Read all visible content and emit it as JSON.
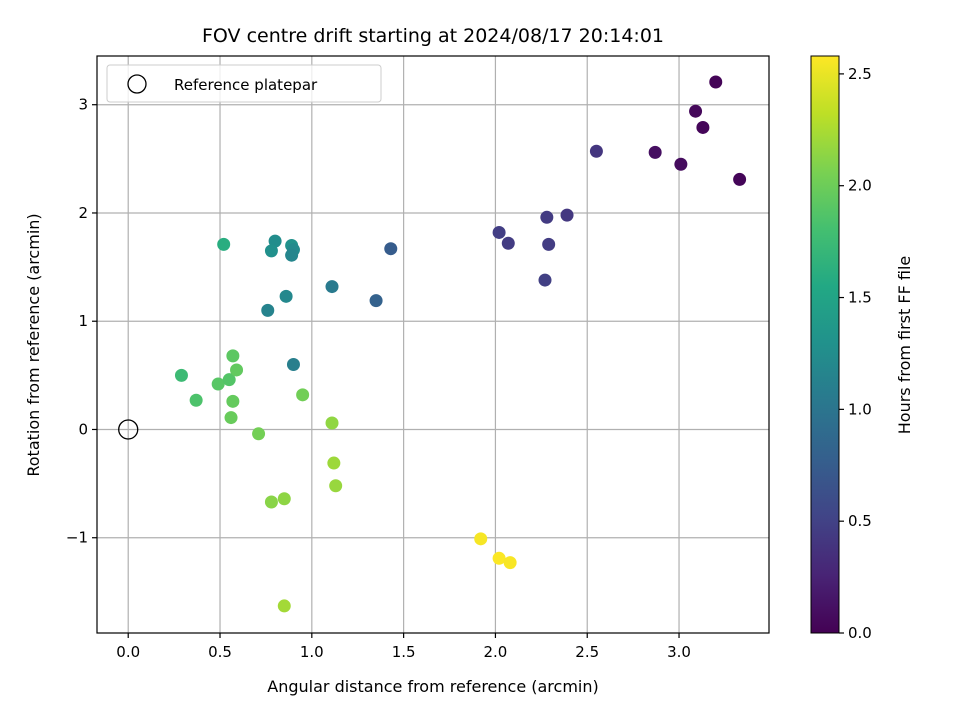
{
  "chart_data": {
    "type": "scatter",
    "title": "FOV centre drift starting at 2024/08/17 20:14:01",
    "xlabel": "Angular distance from reference (arcmin)",
    "ylabel": "Rotation from reference (arcmin)",
    "xlim": [
      -0.17,
      3.49
    ],
    "ylim": [
      -1.88,
      3.45
    ],
    "xticks": [
      0.0,
      0.5,
      1.0,
      1.5,
      2.0,
      2.5,
      3.0
    ],
    "xtick_labels": [
      "0.0",
      "0.5",
      "1.0",
      "1.5",
      "2.0",
      "2.5",
      "3.0"
    ],
    "yticks": [
      -1,
      0,
      1,
      2,
      3
    ],
    "ytick_labels": [
      "−1",
      "0",
      "1",
      "2",
      "3"
    ],
    "grid": true,
    "legend": {
      "placement": "top-left",
      "entries": [
        "Reference platepar"
      ]
    },
    "reference_point": {
      "x": 0.0,
      "y": 0.0
    },
    "colorbar": {
      "label": "Hours from first FF file",
      "range": [
        0.0,
        2.58
      ],
      "ticks": [
        0.0,
        0.5,
        1.0,
        1.5,
        2.0,
        2.5
      ],
      "tick_labels": [
        "0.0",
        "0.5",
        "1.0",
        "1.5",
        "2.0",
        "2.5"
      ],
      "colormap": "viridis"
    },
    "points": [
      {
        "x": 3.2,
        "y": 3.21,
        "c": 0.02
      },
      {
        "x": 3.09,
        "y": 2.94,
        "c": 0.05
      },
      {
        "x": 3.13,
        "y": 2.79,
        "c": 0.04
      },
      {
        "x": 2.87,
        "y": 2.56,
        "c": 0.1
      },
      {
        "x": 3.01,
        "y": 2.45,
        "c": 0.08
      },
      {
        "x": 3.33,
        "y": 2.31,
        "c": 0.03
      },
      {
        "x": 2.55,
        "y": 2.57,
        "c": 0.4
      },
      {
        "x": 2.39,
        "y": 1.98,
        "c": 0.42
      },
      {
        "x": 2.28,
        "y": 1.96,
        "c": 0.44
      },
      {
        "x": 2.02,
        "y": 1.82,
        "c": 0.47
      },
      {
        "x": 2.07,
        "y": 1.72,
        "c": 0.45
      },
      {
        "x": 2.29,
        "y": 1.71,
        "c": 0.46
      },
      {
        "x": 2.27,
        "y": 1.38,
        "c": 0.48
      },
      {
        "x": 1.43,
        "y": 1.67,
        "c": 0.75
      },
      {
        "x": 1.35,
        "y": 1.19,
        "c": 0.8
      },
      {
        "x": 1.11,
        "y": 1.32,
        "c": 1.05
      },
      {
        "x": 0.9,
        "y": 0.6,
        "c": 1.1
      },
      {
        "x": 0.76,
        "y": 1.1,
        "c": 1.15
      },
      {
        "x": 0.86,
        "y": 1.23,
        "c": 1.2
      },
      {
        "x": 0.8,
        "y": 1.74,
        "c": 1.25
      },
      {
        "x": 0.78,
        "y": 1.65,
        "c": 1.28
      },
      {
        "x": 0.89,
        "y": 1.7,
        "c": 1.3
      },
      {
        "x": 0.9,
        "y": 1.66,
        "c": 1.22
      },
      {
        "x": 0.89,
        "y": 1.61,
        "c": 1.18
      },
      {
        "x": 0.52,
        "y": 1.71,
        "c": 1.6
      },
      {
        "x": 0.29,
        "y": 0.5,
        "c": 1.75
      },
      {
        "x": 0.37,
        "y": 0.27,
        "c": 1.85
      },
      {
        "x": 0.49,
        "y": 0.42,
        "c": 1.9
      },
      {
        "x": 0.55,
        "y": 0.46,
        "c": 1.88
      },
      {
        "x": 0.57,
        "y": 0.68,
        "c": 1.92
      },
      {
        "x": 0.59,
        "y": 0.55,
        "c": 1.95
      },
      {
        "x": 0.57,
        "y": 0.26,
        "c": 1.96
      },
      {
        "x": 0.56,
        "y": 0.11,
        "c": 1.98
      },
      {
        "x": 0.95,
        "y": 0.32,
        "c": 2.02
      },
      {
        "x": 0.71,
        "y": -0.04,
        "c": 2.03
      },
      {
        "x": 1.11,
        "y": 0.06,
        "c": 2.15
      },
      {
        "x": 1.12,
        "y": -0.31,
        "c": 2.2
      },
      {
        "x": 1.13,
        "y": -0.52,
        "c": 2.18
      },
      {
        "x": 0.78,
        "y": -0.67,
        "c": 2.12
      },
      {
        "x": 0.85,
        "y": -0.64,
        "c": 2.14
      },
      {
        "x": 0.85,
        "y": -1.63,
        "c": 2.22
      },
      {
        "x": 1.92,
        "y": -1.01,
        "c": 2.55
      },
      {
        "x": 2.02,
        "y": -1.19,
        "c": 2.57
      },
      {
        "x": 2.08,
        "y": -1.23,
        "c": 2.56
      }
    ]
  }
}
